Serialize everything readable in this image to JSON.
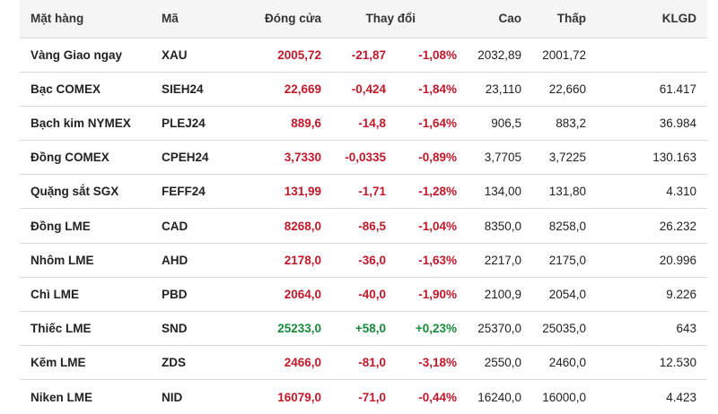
{
  "header": {
    "item": "Mặt hàng",
    "code": "Mã",
    "close": "Đóng cửa",
    "change": "Thay đổi",
    "high": "Cao",
    "low": "Thấp",
    "volume": "KLGD"
  },
  "colors": {
    "negative": "#c0192a",
    "positive": "#1a8a3a"
  },
  "rows": [
    {
      "name": "Vàng Giao ngay",
      "code": "XAU",
      "close": "2005,72",
      "change": "-21,87",
      "pct": "-1,08%",
      "high": "2032,89",
      "low": "2001,72",
      "volume": "",
      "dir": "neg"
    },
    {
      "name": "Bạc COMEX",
      "code": "SIEH24",
      "close": "22,669",
      "change": "-0,424",
      "pct": "-1,84%",
      "high": "23,110",
      "low": "22,660",
      "volume": "61.417",
      "dir": "neg"
    },
    {
      "name": "Bạch kim NYMEX",
      "code": "PLEJ24",
      "close": "889,6",
      "change": "-14,8",
      "pct": "-1,64%",
      "high": "906,5",
      "low": "883,2",
      "volume": "36.984",
      "dir": "neg"
    },
    {
      "name": "Đồng COMEX",
      "code": "CPEH24",
      "close": "3,7330",
      "change": "-0,0335",
      "pct": "-0,89%",
      "high": "3,7705",
      "low": "3,7225",
      "volume": "130.163",
      "dir": "neg"
    },
    {
      "name": "Quặng sắt SGX",
      "code": "FEFF24",
      "close": "131,99",
      "change": "-1,71",
      "pct": "-1,28%",
      "high": "134,00",
      "low": "131,80",
      "volume": "4.310",
      "dir": "neg"
    },
    {
      "name": "Đồng LME",
      "code": "CAD",
      "close": "8268,0",
      "change": "-86,5",
      "pct": "-1,04%",
      "high": "8350,0",
      "low": "8258,0",
      "volume": "26.232",
      "dir": "neg"
    },
    {
      "name": "Nhôm LME",
      "code": "AHD",
      "close": "2178,0",
      "change": "-36,0",
      "pct": "-1,63%",
      "high": "2217,0",
      "low": "2175,0",
      "volume": "20.996",
      "dir": "neg"
    },
    {
      "name": "Chì LME",
      "code": "PBD",
      "close": "2064,0",
      "change": "-40,0",
      "pct": "-1,90%",
      "high": "2100,9",
      "low": "2054,0",
      "volume": "9.226",
      "dir": "neg"
    },
    {
      "name": "Thiếc LME",
      "code": "SND",
      "close": "25233,0",
      "change": "+58,0",
      "pct": "+0,23%",
      "high": "25370,0",
      "low": "25035,0",
      "volume": "643",
      "dir": "pos"
    },
    {
      "name": "Kẽm LME",
      "code": "ZDS",
      "close": "2466,0",
      "change": "-81,0",
      "pct": "-3,18%",
      "high": "2550,0",
      "low": "2460,0",
      "volume": "12.530",
      "dir": "neg"
    },
    {
      "name": "Niken LME",
      "code": "NID",
      "close": "16079,0",
      "change": "-71,0",
      "pct": "-0,44%",
      "high": "16240,0",
      "low": "16000,0",
      "volume": "4.423",
      "dir": "neg"
    }
  ]
}
